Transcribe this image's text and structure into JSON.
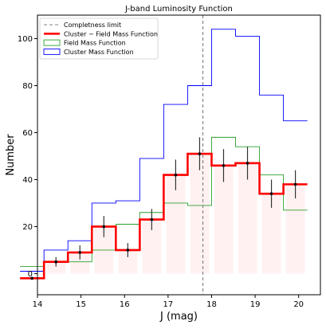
{
  "chart_data": {
    "type": "step",
    "title": "J-band Luminosity Function",
    "xlabel": "J (mag)",
    "ylabel": "Number",
    "xlim": [
      14,
      20.5
    ],
    "ylim": [
      -9,
      110
    ],
    "xticks": [
      14,
      15,
      16,
      17,
      18,
      19,
      20
    ],
    "yticks": [
      0,
      20,
      40,
      60,
      80,
      100
    ],
    "grid": false,
    "legend_position": "top-left",
    "bin_edges": [
      13.6,
      14.15,
      14.7,
      15.25,
      15.8,
      16.35,
      16.9,
      17.45,
      18.0,
      18.55,
      19.1,
      19.65,
      20.2
    ],
    "completeness_limit": {
      "name": "Completness limit",
      "x": 17.8,
      "color": "#808080"
    },
    "series": [
      {
        "name": "Cluster − Field Mass Function",
        "color": "#ff0000",
        "values": [
          -2,
          5,
          9,
          20,
          10,
          23,
          42,
          51,
          46,
          47,
          34,
          38,
          -1
        ],
        "errors": [
          0,
          2,
          3,
          4.5,
          3,
          4.5,
          6.5,
          7,
          7,
          7,
          6,
          6,
          1
        ]
      },
      {
        "name": "Field Mass Function",
        "color": "#2ca02c",
        "values": [
          3,
          5,
          5,
          10,
          21,
          26,
          30,
          29,
          58,
          54,
          42,
          27,
          1
        ]
      },
      {
        "name": "Cluster Mass Function",
        "color": "#0000ff",
        "values": [
          1,
          10,
          14,
          30,
          31,
          49,
          72,
          80,
          104,
          101,
          76,
          65,
          0
        ]
      }
    ]
  }
}
